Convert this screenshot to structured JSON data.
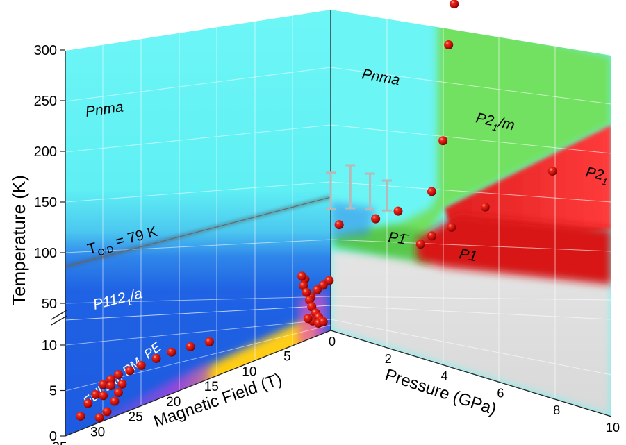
{
  "chart_data": {
    "type": "scatter",
    "axes": {
      "y_left": {
        "label": "Temperature (K)",
        "upper_ticks": [
          "50",
          "100",
          "150",
          "200",
          "250",
          "300"
        ],
        "lower_ticks": [
          "0",
          "5",
          "10"
        ],
        "axis_break": true
      },
      "magnetic_field": {
        "label": "Magnetic Field (T)",
        "ticks": [
          "35",
          "30",
          "25",
          "20",
          "15",
          "10",
          "5"
        ],
        "range": [
          0,
          35
        ],
        "reversed": true
      },
      "pressure": {
        "label": "Pressure (GPa)",
        "ticks": [
          "0",
          "2",
          "4",
          "6",
          "8",
          "10"
        ],
        "range": [
          0,
          10
        ]
      }
    },
    "phase_labels": {
      "field_pnma": "Pnma",
      "t_od": "T",
      "t_od_sub": "O/D",
      "t_od_rest": " = 79 K",
      "p112_main": "P112",
      "p112_sub": "1",
      "p112_rest": "/a",
      "full_sat": "Full sat, PM, PE",
      "pressure_pnma": "Pnma",
      "p21m_main": "P2",
      "p21m_sub": "1",
      "p21m_rest": "/m",
      "p21_main": "P2",
      "p21_sub": "1",
      "p1bar": "P1̄",
      "p1": "P1"
    },
    "transition_line": {
      "label": "TO/D = 79 K",
      "temperature_K": 79
    },
    "colors": {
      "pnma": "#66f5f5",
      "p112a": "#1e5fe6",
      "full_sat": "#ffcc11",
      "p21m": "#72e060",
      "p21": "#ff3a3a",
      "p1": "#dd1111",
      "unknown": "#dcdcdc",
      "markers": "#d41010"
    },
    "pressure_points": [
      {
        "x": 0.3,
        "y": 113
      },
      {
        "x": 1.6,
        "y": 120
      },
      {
        "x": 2.4,
        "y": 128
      },
      {
        "x": 3.2,
        "y": 99
      },
      {
        "x": 3.6,
        "y": 107
      },
      {
        "x": 3.6,
        "y": 148
      },
      {
        "x": 4.3,
        "y": 116
      },
      {
        "x": 5.5,
        "y": 137
      },
      {
        "x": 4.0,
        "y": 196
      },
      {
        "x": 4.2,
        "y": 286
      },
      {
        "x": 4.4,
        "y": 325
      },
      {
        "x": 7.9,
        "y": 177
      }
    ],
    "pressure_error_bars": [
      {
        "x": 0.0,
        "y": 142,
        "low": 126,
        "high": 158
      },
      {
        "x": 0.7,
        "y": 147,
        "low": 128,
        "high": 166
      },
      {
        "x": 1.4,
        "y": 143,
        "low": 128,
        "high": 160
      },
      {
        "x": 2.0,
        "y": 141,
        "low": 128,
        "high": 155
      }
    ],
    "field_points": [
      {
        "x": 0.2,
        "y": 64
      },
      {
        "x": 1.0,
        "y": 60
      },
      {
        "x": 1.8,
        "y": 56
      },
      {
        "x": 2.6,
        "y": 50
      },
      {
        "x": 3.4,
        "y": 43
      },
      {
        "x": 3.8,
        "y": 38
      },
      {
        "x": 3.6,
        "y": 33
      },
      {
        "x": 3.2,
        "y": 30
      },
      {
        "x": 2.8,
        "y": 26
      },
      {
        "x": 2.5,
        "y": 22
      },
      {
        "x": 2.0,
        "y": 18
      },
      {
        "x": 1.6,
        "y": 15
      },
      {
        "x": 1.2,
        "y": 12
      },
      {
        "x": 2.4,
        "y": 12
      },
      {
        "x": 3.0,
        "y": 13.6
      },
      {
        "x": 1.6,
        "y": 10
      },
      {
        "x": 1.0,
        "y": 11
      },
      {
        "x": 16.0,
        "y": 8.0
      },
      {
        "x": 18.5,
        "y": 7.6
      },
      {
        "x": 21.0,
        "y": 7.2
      },
      {
        "x": 23.0,
        "y": 6.6
      },
      {
        "x": 25.0,
        "y": 6.0
      },
      {
        "x": 26.5,
        "y": 5.6
      },
      {
        "x": 28.0,
        "y": 5.4
      },
      {
        "x": 29.0,
        "y": 5.0
      },
      {
        "x": 30.0,
        "y": 4.6
      },
      {
        "x": 31.0,
        "y": 3.6
      },
      {
        "x": 32.0,
        "y": 2.8
      },
      {
        "x": 33.0,
        "y": 1.6
      },
      {
        "x": 27.5,
        "y": 4.0
      },
      {
        "x": 28.0,
        "y": 3.0
      },
      {
        "x": 28.5,
        "y": 2.0
      },
      {
        "x": 29.5,
        "y": 1.0
      },
      {
        "x": 30.5,
        "y": 0.6
      },
      {
        "x": 29.0,
        "y": 4.2
      },
      {
        "x": 30.0,
        "y": 3.2
      }
    ],
    "grid": true,
    "legend": "none"
  }
}
